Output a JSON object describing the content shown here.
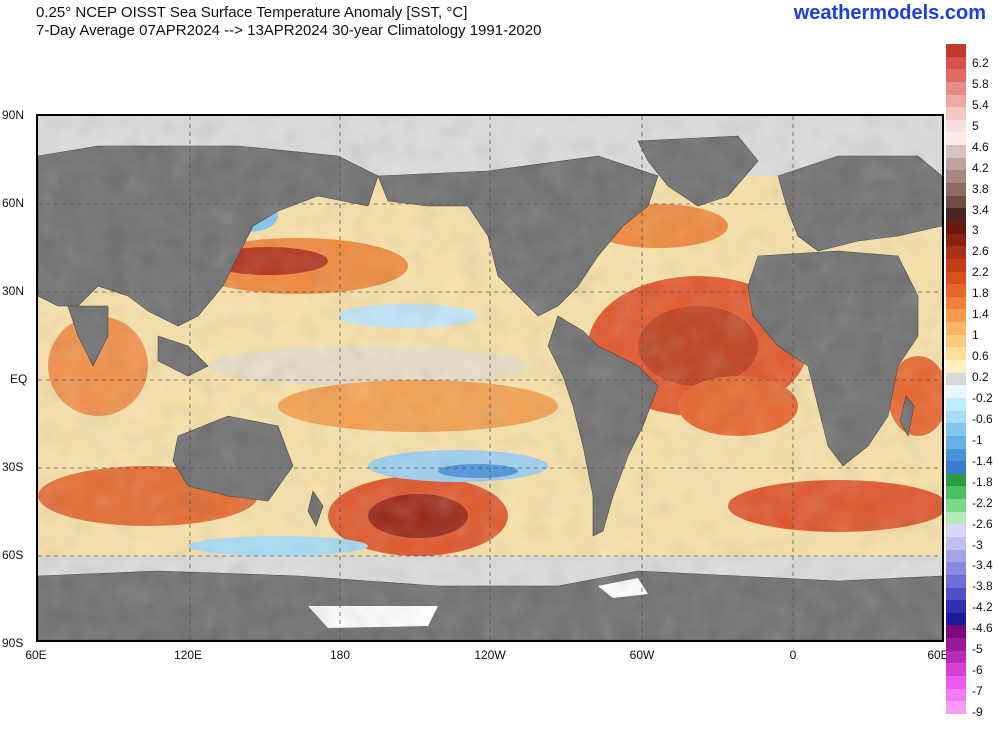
{
  "header": {
    "title_line1": "0.25° NCEP OISST Sea Surface Temperature Anomaly [SST, °C]",
    "title_line2": "7-Day Average 07APR2024 --> 13APR2024   30-year Climatology 1991-2020",
    "brand": "weathermodels.com"
  },
  "map": {
    "projection": "equirectangular",
    "lon_range": "60E to 60E (420)",
    "lat_labels": [
      "90N",
      "60N",
      "30N",
      "EQ",
      "30S",
      "60S",
      "90S"
    ],
    "lon_labels": [
      "60E",
      "120E",
      "180",
      "120W",
      "60W",
      "0",
      "60E"
    ],
    "land_color": "#6e6e6e",
    "ice_color": "#ffffff",
    "gridlines": "dashed"
  },
  "colorbar": {
    "ticks": [
      "6.2",
      "5.8",
      "5.4",
      "5",
      "4.6",
      "4.2",
      "3.8",
      "3.4",
      "3",
      "2.6",
      "2.2",
      "1.8",
      "1.4",
      "1",
      "0.6",
      "0.2",
      "-0.2",
      "-0.6",
      "-1",
      "-1.4",
      "-1.8",
      "-2.2",
      "-2.6",
      "-3",
      "-3.4",
      "-3.8",
      "-4.2",
      "-4.6",
      "-5",
      "-6",
      "-7",
      "-9"
    ],
    "colors": [
      "#c0392b",
      "#d4524a",
      "#e06a66",
      "#e88a86",
      "#f0a8a4",
      "#f6c6c4",
      "#f9dfdd",
      "#fbeae8",
      "#d6c4c0",
      "#c1a39d",
      "#a98680",
      "#8d6a63",
      "#6f4b44",
      "#4a2420",
      "#6b1a10",
      "#8a2412",
      "#a83116",
      "#c23d18",
      "#d9501e",
      "#e8662a",
      "#f28038",
      "#f79a4c",
      "#fab562",
      "#fccb7c",
      "#fde19a",
      "#fff0bc",
      "#d9d9d9",
      "#e6f7ff",
      "#c2ecfb",
      "#a6dcf5",
      "#86c6ef",
      "#66aee6",
      "#4a94db",
      "#3a7bd0",
      "#2a9a3a",
      "#4cc060",
      "#7bd88a",
      "#b2ecb4",
      "#d8d8f6",
      "#bfbff0",
      "#a4a4e8",
      "#8a8ae0",
      "#6e6ed6",
      "#5050c8",
      "#3030b4",
      "#1a1a9a",
      "#7a0a7a",
      "#9a1a9a",
      "#b82cb8",
      "#d640d6",
      "#ee5cee",
      "#f47af4",
      "#f89cf8"
    ]
  }
}
